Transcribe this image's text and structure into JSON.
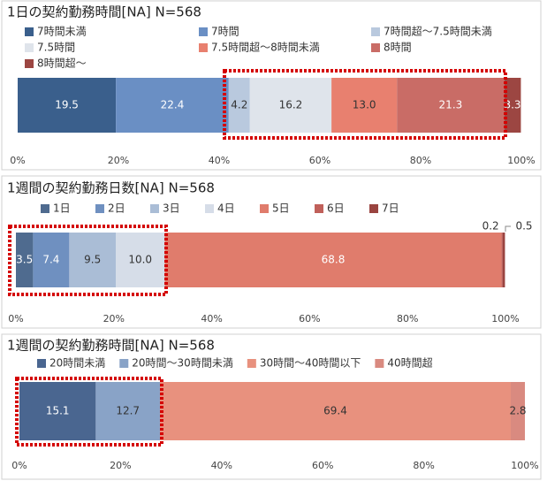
{
  "chart_data": [
    {
      "type": "bar",
      "orientation": "horizontal",
      "stacked": true,
      "title": "1日の契約勤務時間[NA]  N=568",
      "series": [
        {
          "name": "7時間未満",
          "color": "#3a5f8c",
          "values": [
            19.5
          ]
        },
        {
          "name": "7時間",
          "color": "#6a8fc4",
          "values": [
            22.4
          ]
        },
        {
          "name": "7時間超～7.5時間未満",
          "color": "#b9c9de",
          "values": [
            4.2
          ]
        },
        {
          "name": "7.5時間",
          "color": "#dfe4eb",
          "values": [
            16.2
          ]
        },
        {
          "name": "7.5時間超～8時間未満",
          "color": "#e8806f",
          "values": [
            13.0
          ],
          "value_labels": [
            "13.0"
          ]
        },
        {
          "name": "8時間",
          "color": "#c96c66",
          "values": [
            21.3
          ]
        },
        {
          "name": "8時間超～",
          "color": "#9c4642",
          "values": [
            3.3
          ]
        }
      ],
      "xlim": [
        0,
        100
      ],
      "xticks": [
        {
          "value": 0,
          "label": "0%"
        },
        {
          "value": 20,
          "label": "20%"
        },
        {
          "value": 40,
          "label": "40%"
        },
        {
          "value": 60,
          "label": "60%"
        },
        {
          "value": 80,
          "label": "80%"
        },
        {
          "value": 100,
          "label": "100%"
        }
      ]
    },
    {
      "type": "bar",
      "orientation": "horizontal",
      "stacked": true,
      "title": "1週間の契約勤務日数[NA]  N=568",
      "series": [
        {
          "name": "1日",
          "color": "#4f6b8f",
          "values": [
            3.5
          ]
        },
        {
          "name": "2日",
          "color": "#6f90c0",
          "values": [
            7.4
          ]
        },
        {
          "name": "3日",
          "color": "#aabdd6",
          "values": [
            9.5
          ]
        },
        {
          "name": "4日",
          "color": "#d6dde8",
          "values": [
            10.0
          ],
          "value_labels": [
            "10.0"
          ]
        },
        {
          "name": "5日",
          "color": "#e07c6c",
          "values": [
            68.8
          ]
        },
        {
          "name": "6日",
          "color": "#c0605a",
          "values": [
            0.2
          ]
        },
        {
          "name": "7日",
          "color": "#9a4440",
          "values": [
            0.5
          ]
        }
      ],
      "xlim": [
        0,
        100
      ],
      "xticks": [
        {
          "value": 0,
          "label": "0%"
        },
        {
          "value": 20,
          "label": "20%"
        },
        {
          "value": 40,
          "label": "40%"
        },
        {
          "value": 60,
          "label": "60%"
        },
        {
          "value": 80,
          "label": "80%"
        },
        {
          "value": 100,
          "label": "100%"
        }
      ]
    },
    {
      "type": "bar",
      "orientation": "horizontal",
      "stacked": true,
      "title": "1週間の契約勤務時間[NA]  N=568",
      "series": [
        {
          "name": "20時間未満",
          "color": "#4a6690",
          "values": [
            15.1
          ]
        },
        {
          "name": "20時間～30時間未満",
          "color": "#89a3c7",
          "values": [
            12.7
          ]
        },
        {
          "name": "30時間～40時間以下",
          "color": "#e8917e",
          "values": [
            69.4
          ]
        },
        {
          "name": "40時間超",
          "color": "#d98a80",
          "values": [
            2.8
          ]
        }
      ],
      "xlim": [
        0,
        100
      ],
      "xticks": [
        {
          "value": 0,
          "label": "0%"
        },
        {
          "value": 20,
          "label": "20%"
        },
        {
          "value": 40,
          "label": "40%"
        },
        {
          "value": 60,
          "label": "60%"
        },
        {
          "value": 80,
          "label": "80%"
        },
        {
          "value": 100,
          "label": "100%"
        }
      ]
    }
  ]
}
